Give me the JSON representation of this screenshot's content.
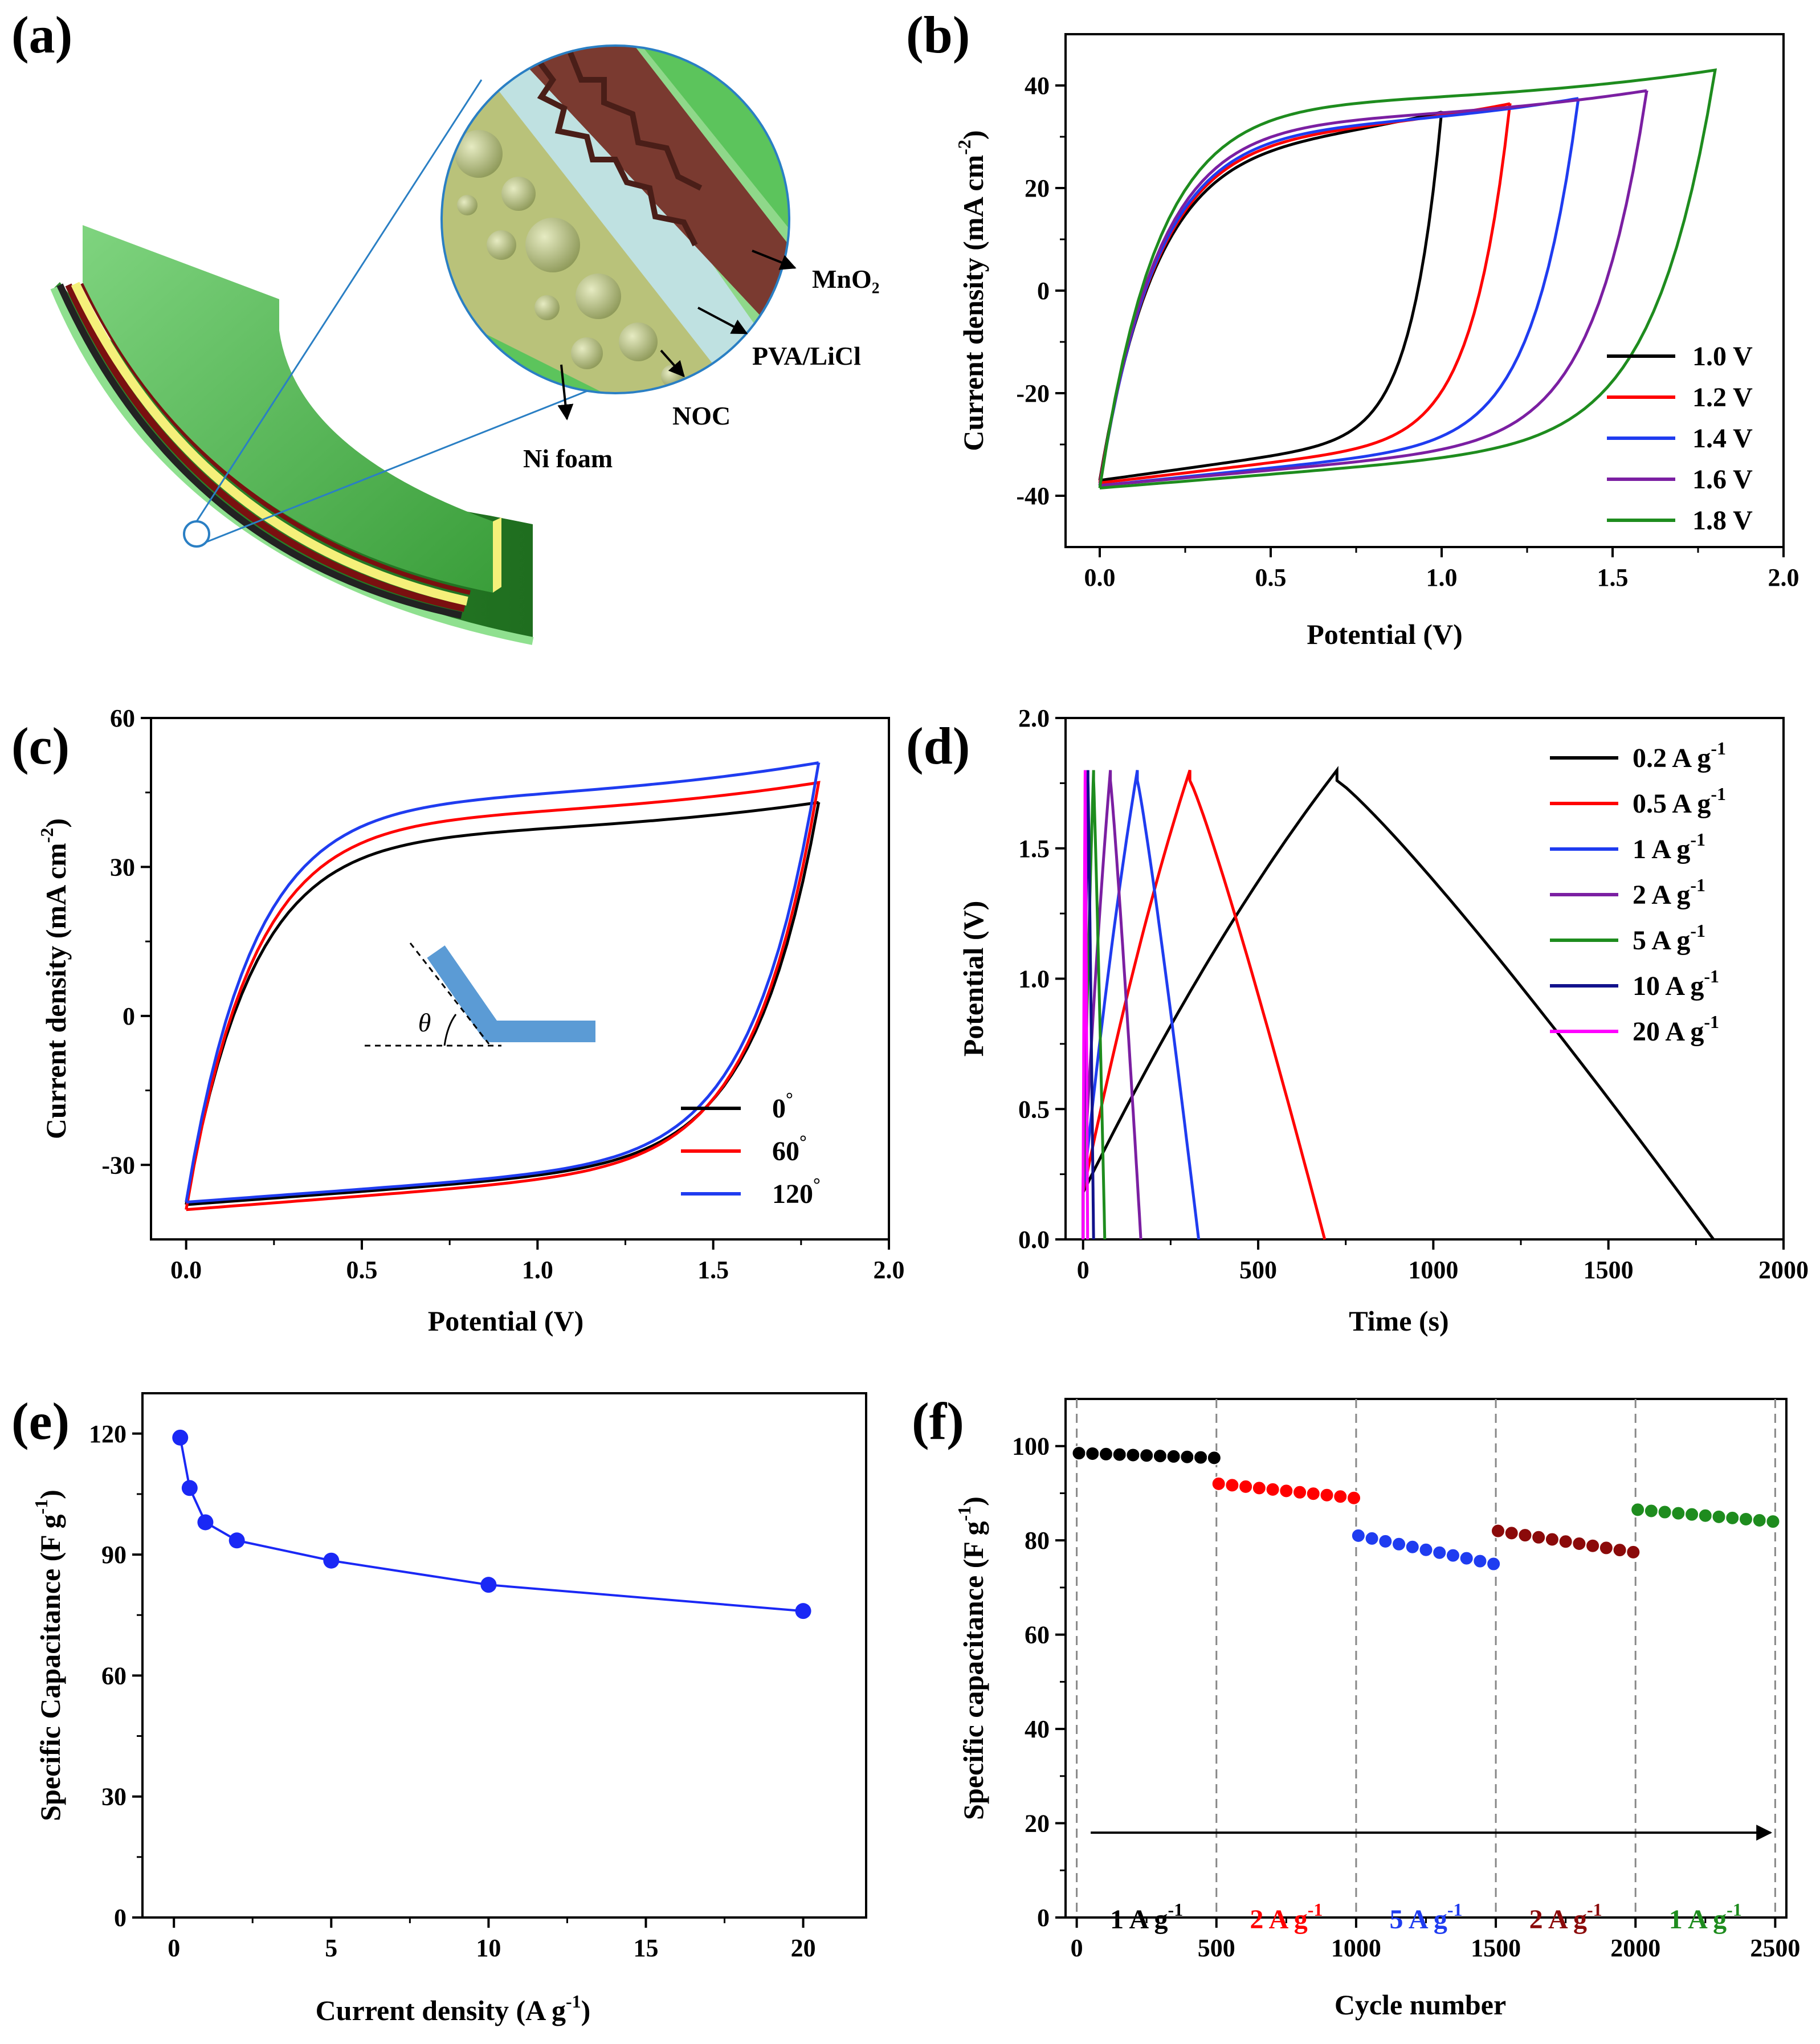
{
  "colors": {
    "black": "#000000",
    "red": "#ff0000",
    "blue": "#1f3cf0",
    "purple": "#7b1fa2",
    "green": "#1e8c1e",
    "navy": "#12128c",
    "magenta": "#ff00ff",
    "darkred": "#8b0a0a",
    "ptblue": "#1a28f5",
    "bend": "#5b9bd5"
  },
  "panel_a": {
    "label": "(a)",
    "layers": {
      "mno2": "MnO₂",
      "electrolyte": "PVA/LiCl",
      "noc": "NOC",
      "ni_foam": "Ni foam"
    }
  },
  "chart_data": [
    {
      "id": "b",
      "panel_label": "(b)",
      "type": "line",
      "subtype": "cv-loops",
      "xlabel": "Potential (V)",
      "ylabel_main": "Current density (mA cm",
      "ylabel_sup": "-2",
      "ylabel_end": ")",
      "xlim": [
        -0.1,
        2.0
      ],
      "ylim": [
        -50,
        50
      ],
      "xticks": [
        "0.0",
        "0.5",
        "1.0",
        "1.5",
        "2.0"
      ],
      "xtick_values": [
        0,
        0.5,
        1.0,
        1.5,
        2.0
      ],
      "yticks": [
        "-40",
        "-20",
        "0",
        "20",
        "40"
      ],
      "ytick_values": [
        -40,
        -20,
        0,
        20,
        40
      ],
      "series": [
        {
          "name": "1.0 V",
          "vmax": 1.0,
          "i_top": 35,
          "i_bottom": -37,
          "color": "black"
        },
        {
          "name": "1.2 V",
          "vmax": 1.2,
          "i_top": 36.5,
          "i_bottom": -37.5,
          "color": "red"
        },
        {
          "name": "1.4 V",
          "vmax": 1.4,
          "i_top": 37.5,
          "i_bottom": -38,
          "color": "blue"
        },
        {
          "name": "1.6 V",
          "vmax": 1.6,
          "i_top": 39,
          "i_bottom": -38,
          "color": "purple"
        },
        {
          "name": "1.8 V",
          "vmax": 1.8,
          "i_top": 43,
          "i_bottom": -38.5,
          "color": "green"
        }
      ],
      "legend_position": "bottom-right"
    },
    {
      "id": "c",
      "panel_label": "(c)",
      "type": "line",
      "subtype": "cv-loops",
      "xlabel": "Potential (V)",
      "ylabel_main": "Current density (mA cm",
      "ylabel_sup": "-2",
      "ylabel_end": ")",
      "xlim": [
        -0.1,
        2.0
      ],
      "ylim": [
        -45,
        60
      ],
      "xticks": [
        "0.0",
        "0.5",
        "1.0",
        "1.5",
        "2.0"
      ],
      "xtick_values": [
        0,
        0.5,
        1.0,
        1.5,
        2.0
      ],
      "yticks": [
        "-30",
        "0",
        "30",
        "60"
      ],
      "ytick_values": [
        -30,
        0,
        30,
        60
      ],
      "series": [
        {
          "name": "0",
          "deg": "°",
          "vmax": 1.8,
          "i_top": 43,
          "i_bottom": -38,
          "color": "black"
        },
        {
          "name": "60",
          "deg": "°",
          "vmax": 1.8,
          "i_top": 47,
          "i_bottom": -39,
          "color": "red"
        },
        {
          "name": "120",
          "deg": "°",
          "vmax": 1.8,
          "i_top": 51,
          "i_bottom": -37.5,
          "color": "blue"
        }
      ],
      "inset_label": "θ",
      "legend_position": "bottom-right"
    },
    {
      "id": "d",
      "panel_label": "(d)",
      "type": "line",
      "subtype": "gcd",
      "xlabel": "Time (s)",
      "ylabel": "Potential (V)",
      "xlim": [
        -50,
        2000
      ],
      "ylim": [
        0,
        2.0
      ],
      "xticks": [
        "0",
        "500",
        "1000",
        "1500",
        "2000"
      ],
      "xtick_values": [
        0,
        500,
        1000,
        1500,
        2000
      ],
      "yticks": [
        "0.0",
        "0.5",
        "1.0",
        "1.5",
        "2.0"
      ],
      "ytick_values": [
        0,
        0.5,
        1.0,
        1.5,
        2.0
      ],
      "series": [
        {
          "name": "0.2 A g",
          "sup": "-1",
          "t_charge": 725,
          "t_end": 1800,
          "color": "black"
        },
        {
          "name": "0.5 A g",
          "sup": "-1",
          "t_charge": 305,
          "t_end": 690,
          "color": "red"
        },
        {
          "name": "1 A g",
          "sup": "-1",
          "t_charge": 155,
          "t_end": 330,
          "color": "blue"
        },
        {
          "name": "2 A g",
          "sup": "-1",
          "t_charge": 78,
          "t_end": 165,
          "color": "purple"
        },
        {
          "name": "5 A g",
          "sup": "-1",
          "t_charge": 30,
          "t_end": 62,
          "color": "green"
        },
        {
          "name": "10 A g",
          "sup": "-1",
          "t_charge": 14,
          "t_end": 30,
          "color": "navy"
        },
        {
          "name": "20 A g",
          "sup": "-1",
          "t_charge": 6,
          "t_end": 13,
          "color": "magenta"
        }
      ],
      "legend_position": "top-right"
    },
    {
      "id": "e",
      "panel_label": "(e)",
      "type": "line",
      "subtype": "markers",
      "xlabel_main": "Current density (A g",
      "xlabel_sup": "-1",
      "xlabel_end": ")",
      "ylabel_main": "Specific Capacitance (F g",
      "ylabel_sup": "-1",
      "ylabel_end": ")",
      "xlim": [
        -1,
        22
      ],
      "ylim": [
        0,
        130
      ],
      "xticks": [
        "0",
        "5",
        "10",
        "15",
        "20"
      ],
      "xtick_values": [
        0,
        5,
        10,
        15,
        20
      ],
      "yticks": [
        "0",
        "30",
        "60",
        "90",
        "120"
      ],
      "ytick_values": [
        0,
        30,
        60,
        90,
        120
      ],
      "x": [
        0.2,
        0.5,
        1,
        2,
        5,
        10,
        20
      ],
      "y": [
        119,
        106.5,
        98,
        93.5,
        88.5,
        82.5,
        76
      ],
      "color": "ptblue"
    },
    {
      "id": "f",
      "panel_label": "(f)",
      "type": "scatter",
      "subtype": "rate-cycling",
      "xlabel": "Cycle number",
      "ylabel_main": "Specific capacitance (F g",
      "ylabel_sup": "-1",
      "ylabel_end": ")",
      "xlim": [
        -40,
        2540
      ],
      "ylim": [
        0,
        110
      ],
      "xticks": [
        "0",
        "500",
        "1000",
        "1500",
        "2000",
        "2500"
      ],
      "xtick_values": [
        0,
        500,
        1000,
        1500,
        2000,
        2500
      ],
      "yticks": [
        "0",
        "20",
        "40",
        "60",
        "80",
        "100"
      ],
      "ytick_values": [
        0,
        20,
        40,
        60,
        80,
        100
      ],
      "segments": [
        {
          "label": "1 A g",
          "sup": "-1",
          "start": 0,
          "end": 500,
          "c_start": 98.5,
          "c_end": 97.5,
          "color": "black"
        },
        {
          "label": "2 A g",
          "sup": "-1",
          "start": 500,
          "end": 1000,
          "c_start": 92,
          "c_end": 89,
          "color": "red"
        },
        {
          "label": "5 A g",
          "sup": "-1",
          "start": 1000,
          "end": 1500,
          "c_start": 81,
          "c_end": 75,
          "color": "blue"
        },
        {
          "label": "2 A g",
          "sup": "-1",
          "start": 1500,
          "end": 2000,
          "c_start": 82,
          "c_end": 77.5,
          "color": "darkred"
        },
        {
          "label": "1 A g",
          "sup": "-1",
          "start": 2000,
          "end": 2500,
          "c_start": 86.5,
          "c_end": 84,
          "color": "green"
        }
      ],
      "dividers": [
        0,
        500,
        1000,
        1500,
        2000,
        2500
      ],
      "arrow": {
        "from": 50,
        "to": 2500,
        "level": 18
      }
    }
  ]
}
